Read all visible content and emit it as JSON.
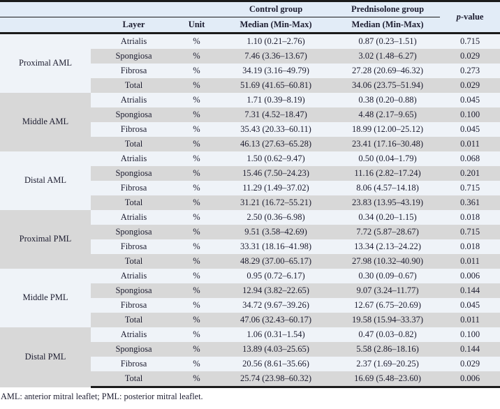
{
  "colors": {
    "header_bg": "#e2ecf7",
    "light_row_bg": "#eff3f8",
    "shaded_row_bg": "#d8d8d8",
    "border": "#1b1b1b",
    "text": "#1d1d30"
  },
  "table": {
    "header": {
      "control_group": "Control group",
      "prednisolone_group": "Prednisolone group",
      "p_italic": "p",
      "p_rest": "-value",
      "layer": "Layer",
      "unit": "Unit",
      "control_median": "Median (Min-Max)",
      "prednisolone_median": "Median (Min-Max)"
    },
    "groups": [
      {
        "name": "Proximal AML",
        "rows": [
          {
            "layer": "Atrialis",
            "unit": "%",
            "control": "1.10 (0.21–2.76)",
            "prednisolone": "0.87 (0.23–1.51)",
            "p": "0.715"
          },
          {
            "layer": "Spongiosa",
            "unit": "%",
            "control": "7.46 (3.36–13.67)",
            "prednisolone": "3.02 (1.48–6.27)",
            "p": "0.029"
          },
          {
            "layer": "Fibrosa",
            "unit": "%",
            "control": "34.19 (3.16–49.79)",
            "prednisolone": "27.28 (20.69–46.32)",
            "p": "0.273"
          },
          {
            "layer": "Total",
            "unit": "%",
            "control": "51.69 (41.65–60.81)",
            "prednisolone": "34.06 (23.75–51.94)",
            "p": "0.029"
          }
        ]
      },
      {
        "name": "Middle AML",
        "rows": [
          {
            "layer": "Atrialis",
            "unit": "%",
            "control": "1.71 (0.39–8.19)",
            "prednisolone": "0.38 (0.20–0.88)",
            "p": "0.045"
          },
          {
            "layer": "Spongiosa",
            "unit": "%",
            "control": "7.31 (4.52–18.47)",
            "prednisolone": "4.48 (2.17–9.65)",
            "p": "0.100"
          },
          {
            "layer": "Fibrosa",
            "unit": "%",
            "control": "35.43 (20.33–60.11)",
            "prednisolone": "18.99 (12.00–25.12)",
            "p": "0.045"
          },
          {
            "layer": "Total",
            "unit": "%",
            "control": "46.13 (27.63–65.28)",
            "prednisolone": "23.41 (17.16–30.48)",
            "p": "0.011"
          }
        ]
      },
      {
        "name": "Distal AML",
        "rows": [
          {
            "layer": "Atrialis",
            "unit": "%",
            "control": "1.50 (0.62–9.47)",
            "prednisolone": "0.50 (0.04–1.79)",
            "p": "0.068"
          },
          {
            "layer": "Spongiosa",
            "unit": "%",
            "control": "15.46 (7.50–24.23)",
            "prednisolone": "11.16 (2.82–17.24)",
            "p": "0.201"
          },
          {
            "layer": "Fibrosa",
            "unit": "%",
            "control": "11.29 (1.49–37.02)",
            "prednisolone": "8.06 (4.57–14.18)",
            "p": "0.715"
          },
          {
            "layer": "Total",
            "unit": "%",
            "control": "31.21 (16.72–55.21)",
            "prednisolone": "23.83 (13.95–43.19)",
            "p": "0.361"
          }
        ]
      },
      {
        "name": "Proximal PML",
        "rows": [
          {
            "layer": "Atrialis",
            "unit": "%",
            "control": "2.50 (0.36–6.98)",
            "prednisolone": "0.34 (0.20–1.15)",
            "p": "0.018"
          },
          {
            "layer": "Spongiosa",
            "unit": "%",
            "control": "9.51 (3.58–42.69)",
            "prednisolone": "7.72 (5.87–28.67)",
            "p": "0.715"
          },
          {
            "layer": "Fibrosa",
            "unit": "%",
            "control": "33.31 (18.16–41.98)",
            "prednisolone": "13.34 (2.13–24.22)",
            "p": "0.018"
          },
          {
            "layer": "Total",
            "unit": "%",
            "control": "48.29 (37.00–65.17)",
            "prednisolone": "27.98 (10.32–40.90)",
            "p": "0.011"
          }
        ]
      },
      {
        "name": "Middle PML",
        "rows": [
          {
            "layer": "Atrialis",
            "unit": "%",
            "control": "0.95 (0.72–6.17)",
            "prednisolone": "0.30 (0.09–0.67)",
            "p": "0.006"
          },
          {
            "layer": "Spongiosa",
            "unit": "%",
            "control": "12.94 (3.82–22.65)",
            "prednisolone": "9.07 (3.24–11.77)",
            "p": "0.144"
          },
          {
            "layer": "Fibrosa",
            "unit": "%",
            "control": "34.72 (9.67–39.26)",
            "prednisolone": "12.67 (6.75–20.69)",
            "p": "0.045"
          },
          {
            "layer": "Total",
            "unit": "%",
            "control": "47.06 (32.43–60.17)",
            "prednisolone": "19.58 (15.94–33.37)",
            "p": "0.011"
          }
        ]
      },
      {
        "name": "Distal PML",
        "rows": [
          {
            "layer": "Atrialis",
            "unit": "%",
            "control": "1.06 (0.31–1.54)",
            "prednisolone": "0.47 (0.03–0.82)",
            "p": "0.100"
          },
          {
            "layer": "Spongiosa",
            "unit": "%",
            "control": "13.89 (4.03–25.65)",
            "prednisolone": "5.58 (2.86–18.16)",
            "p": "0.144"
          },
          {
            "layer": "Fibrosa",
            "unit": "%",
            "control": "20.56 (8.61–35.66)",
            "prednisolone": "2.37 (1.69–20.25)",
            "p": "0.029"
          },
          {
            "layer": "Total",
            "unit": "%",
            "control": "25.74 (23.98–60.32)",
            "prednisolone": "16.69 (5.48–23.60)",
            "p": "0.006"
          }
        ]
      }
    ],
    "footnote": "AML: anterior mitral leaflet; PML: posterior mitral leaflet."
  }
}
